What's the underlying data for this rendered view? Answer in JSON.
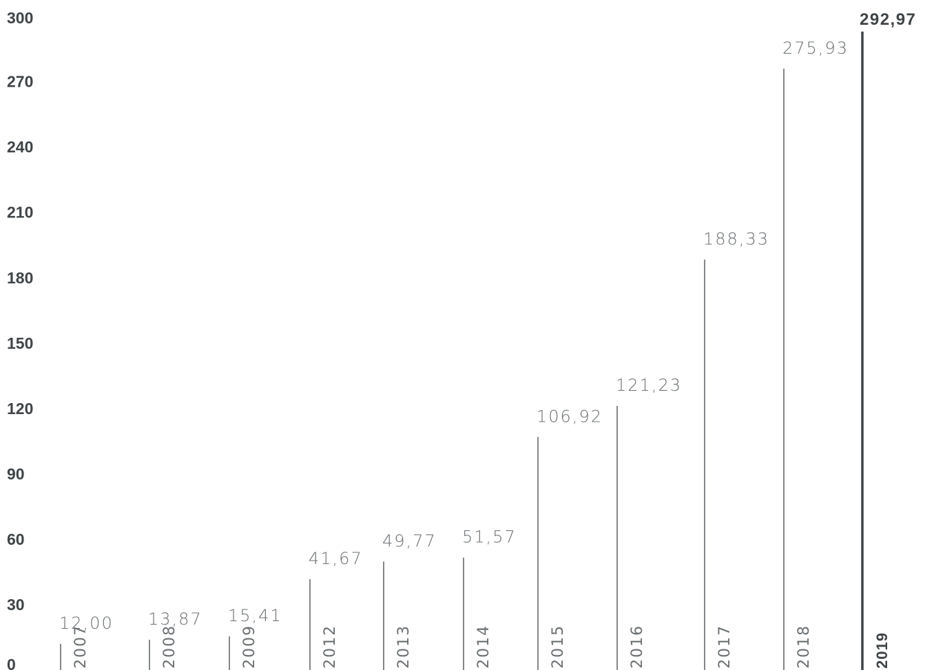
{
  "chart_data": {
    "type": "bar",
    "categories": [
      "2007",
      "2008",
      "2009",
      "2012",
      "2013",
      "2014",
      "2015",
      "2016",
      "2017",
      "2018",
      "2019"
    ],
    "values": [
      12.0,
      13.87,
      15.41,
      41.67,
      49.77,
      51.57,
      106.92,
      121.23,
      188.33,
      275.93,
      292.97
    ],
    "value_labels": [
      "12,00",
      "13,87",
      "15,41",
      "41,67",
      "49,77",
      "51,57",
      "106,92",
      "121,23",
      "188,33",
      "275,93",
      "292,97"
    ],
    "highlight_category": "2019",
    "y_ticks": [
      "0",
      "30",
      "60",
      "90",
      "120",
      "150",
      "180",
      "210",
      "240",
      "270",
      "300"
    ],
    "ylim": [
      0,
      300
    ],
    "grid": false,
    "title": "",
    "xlabel": "",
    "ylabel": "",
    "colors": {
      "bar": "#5a5f62",
      "highlight": "#3f4447",
      "label": "#6a6f72",
      "tick": "#3f4447"
    }
  }
}
